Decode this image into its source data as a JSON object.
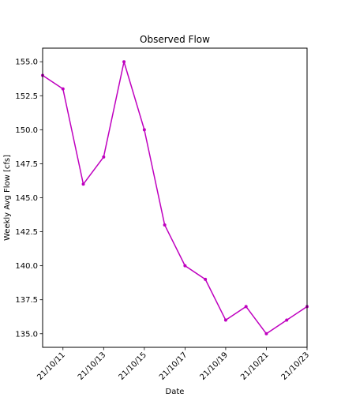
{
  "chart_data": {
    "type": "line",
    "title": "Observed Flow",
    "xlabel": "Date",
    "ylabel": "Weekly Avg Flow [cfs]",
    "x": [
      "2021-10-10",
      "2021-10-11",
      "2021-10-12",
      "2021-10-13",
      "2021-10-14",
      "2021-10-15",
      "2021-10-16",
      "2021-10-17",
      "2021-10-18",
      "2021-10-19",
      "2021-10-20",
      "2021-10-21",
      "2021-10-22",
      "2021-10-23"
    ],
    "series": [
      {
        "values": [
          154,
          153,
          146,
          148,
          155,
          150,
          143,
          140,
          139,
          136,
          137,
          135,
          136,
          137
        ],
        "color": "#bf00bf",
        "marker": "dot"
      }
    ],
    "xlim": [
      "2021-10-10",
      "2021-10-23"
    ],
    "ylim": [
      134,
      156
    ],
    "x_tick_values": [
      "2021-10-11",
      "2021-10-13",
      "2021-10-15",
      "2021-10-17",
      "2021-10-19",
      "2021-10-21",
      "2021-10-23"
    ],
    "x_tick_labels": [
      "21/10/11",
      "21/10/13",
      "21/10/15",
      "21/10/17",
      "21/10/19",
      "21/10/21",
      "21/10/23"
    ],
    "y_tick_values": [
      135.0,
      137.5,
      140.0,
      142.5,
      145.0,
      147.5,
      150.0,
      152.5,
      155.0
    ],
    "y_tick_labels": [
      "135.0",
      "137.5",
      "140.0",
      "142.5",
      "145.0",
      "147.5",
      "150.0",
      "152.5",
      "155.0"
    ],
    "grid": false,
    "legend": "none"
  }
}
